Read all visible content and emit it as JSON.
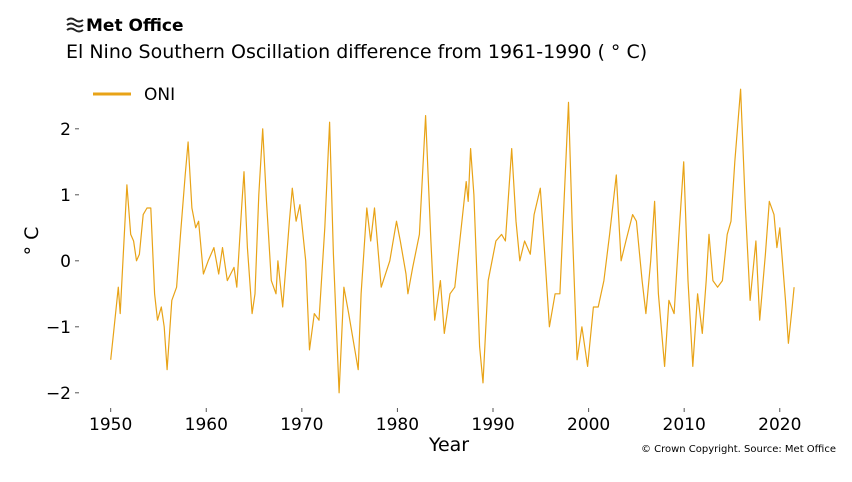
{
  "logo": "Met Office",
  "credit": "© Crown Copyright. Source: Met Office",
  "chart_data": {
    "type": "line",
    "title": "El Nino Southern Oscillation difference from 1961-1990 ( ° C)",
    "x_label": "Year",
    "y_label": "° C",
    "legend": "upper left",
    "xlim": [
      1947,
      2024
    ],
    "ylim": [
      -2.2,
      2.8
    ],
    "xticks": [
      1950,
      1960,
      1970,
      1980,
      1990,
      2000,
      2010,
      2020
    ],
    "yticks": [
      {
        "value": -2,
        "label": "−2"
      },
      {
        "value": -1,
        "label": "−1"
      },
      0,
      1,
      2
    ],
    "x": [
      1950.0,
      1950.3,
      1950.8,
      1951.0,
      1951.7,
      1952.1,
      1952.4,
      1952.7,
      1953.0,
      1953.4,
      1953.8,
      1954.2,
      1954.6,
      1954.9,
      1955.3,
      1955.6,
      1955.9,
      1956.4,
      1956.9,
      1957.3,
      1957.8,
      1958.1,
      1958.5,
      1958.9,
      1959.2,
      1959.7,
      1960.2,
      1960.8,
      1961.3,
      1961.7,
      1962.2,
      1962.9,
      1963.2,
      1963.7,
      1963.95,
      1964.3,
      1964.8,
      1965.1,
      1965.5,
      1965.9,
      1966.3,
      1966.8,
      1967.3,
      1967.5,
      1968.0,
      1968.7,
      1969.0,
      1969.4,
      1969.8,
      1970.4,
      1970.8,
      1971.3,
      1971.8,
      1972.4,
      1972.9,
      1973.3,
      1973.9,
      1974.4,
      1974.9,
      1975.9,
      1976.2,
      1976.8,
      1977.2,
      1977.6,
      1978.3,
      1979.2,
      1979.9,
      1980.3,
      1980.9,
      1981.1,
      1981.6,
      1982.3,
      1982.95,
      1983.5,
      1983.9,
      1984.5,
      1984.9,
      1985.5,
      1986.0,
      1987.2,
      1987.4,
      1987.65,
      1988.0,
      1988.6,
      1988.95,
      1989.5,
      1990.3,
      1990.9,
      1991.3,
      1991.95,
      1992.4,
      1992.8,
      1993.3,
      1993.9,
      1994.3,
      1994.95,
      1995.5,
      1995.9,
      1996.5,
      1997.0,
      1997.9,
      1998.3,
      1998.8,
      1999.3,
      1999.9,
      2000.5,
      2001.0,
      2001.6,
      2002.2,
      2002.9,
      2003.4,
      2003.9,
      2004.6,
      2005.0,
      2005.6,
      2006.0,
      2006.5,
      2006.9,
      2007.3,
      2007.95,
      2008.4,
      2008.95,
      2009.5,
      2009.95,
      2010.4,
      2010.9,
      2011.4,
      2011.9,
      2012.3,
      2012.6,
      2013.0,
      2013.5,
      2014.0,
      2014.5,
      2014.9,
      2015.3,
      2015.9,
      2016.4,
      2016.9,
      2017.5,
      2017.9,
      2018.5,
      2018.9,
      2019.4,
      2019.7,
      2020.0,
      2020.6,
      2020.9,
      2021.3,
      2021.5
    ],
    "series": [
      {
        "name": "ONI",
        "color": "#e8a317",
        "values": [
          -1.5,
          -1.1,
          -0.4,
          -0.8,
          1.15,
          0.4,
          0.3,
          0,
          0.1,
          0.7,
          0.8,
          0.8,
          -0.5,
          -0.9,
          -0.7,
          -1.0,
          -1.65,
          -0.6,
          -0.4,
          0.4,
          1.3,
          1.8,
          0.8,
          0.5,
          0.6,
          -0.2,
          0,
          0.2,
          -0.2,
          0.2,
          -0.3,
          -0.1,
          -0.4,
          0.8,
          1.35,
          0.2,
          -0.8,
          -0.5,
          1.0,
          2.0,
          0.9,
          -0.3,
          -0.5,
          0.0,
          -0.7,
          0.6,
          1.1,
          0.6,
          0.85,
          0.0,
          -1.35,
          -0.8,
          -0.9,
          0.5,
          2.1,
          0.1,
          -2.0,
          -0.4,
          -0.8,
          -1.65,
          -0.5,
          0.8,
          0.3,
          0.8,
          -0.4,
          0.0,
          0.6,
          0.3,
          -0.2,
          -0.5,
          -0.1,
          0.4,
          2.2,
          0.3,
          -0.9,
          -0.3,
          -1.1,
          -0.5,
          -0.4,
          1.2,
          0.9,
          1.7,
          1.0,
          -1.3,
          -1.85,
          -0.3,
          0.3,
          0.4,
          0.3,
          1.7,
          0.6,
          0,
          0.3,
          0.1,
          0.7,
          1.1,
          -0.1,
          -1.0,
          -0.5,
          -0.5,
          2.4,
          0.5,
          -1.5,
          -1.0,
          -1.6,
          -0.7,
          -0.7,
          -0.3,
          0.4,
          1.3,
          0.0,
          0.3,
          0.7,
          0.6,
          -0.3,
          -0.8,
          0.0,
          0.9,
          -0.5,
          -1.6,
          -0.6,
          -0.8,
          0.5,
          1.5,
          -0.3,
          -1.6,
          -0.5,
          -1.1,
          -0.3,
          0.4,
          -0.3,
          -0.4,
          -0.3,
          0.4,
          0.6,
          1.5,
          2.6,
          0.8,
          -0.6,
          0.3,
          -0.9,
          0.1,
          0.9,
          0.7,
          0.2,
          0.5,
          -0.6,
          -1.25,
          -0.7,
          -0.4
        ]
      }
    ]
  }
}
